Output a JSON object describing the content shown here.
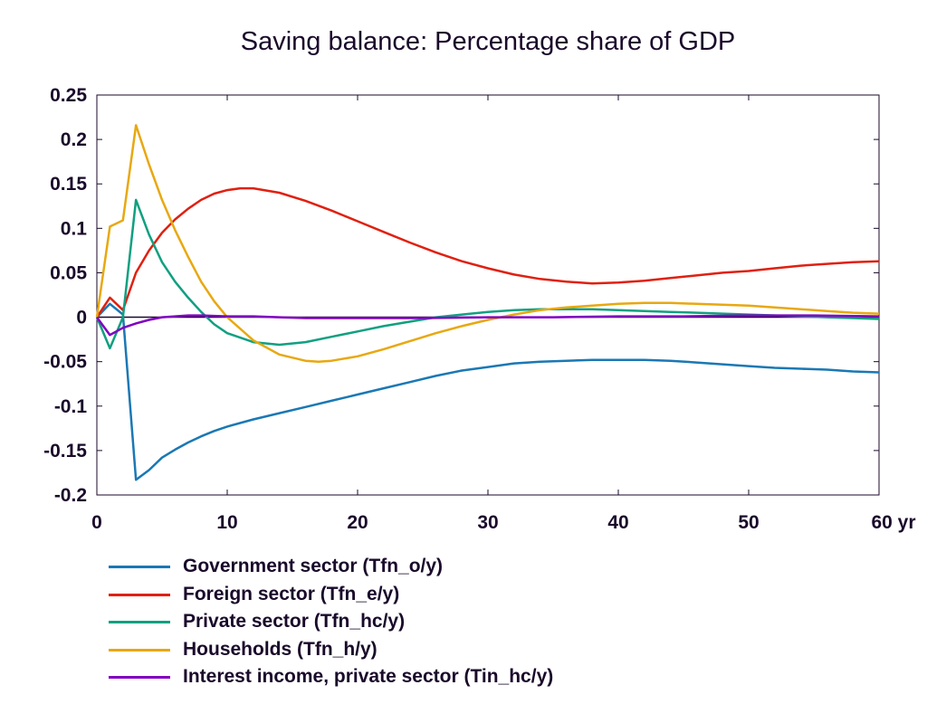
{
  "chart_data": {
    "type": "line",
    "title": "Saving balance: Percentage share of GDP",
    "xlabel": "",
    "ylabel": "",
    "x_unit_label": "yr",
    "xlim": [
      0,
      60
    ],
    "ylim": [
      -0.2,
      0.25
    ],
    "x_ticks": [
      "0",
      "10",
      "20",
      "30",
      "40",
      "50",
      "60 yr"
    ],
    "y_ticks": [
      "0.25",
      "0.2",
      "0.15",
      "0.1",
      "0.05",
      "0",
      "-0.05",
      "-0.1",
      "-0.15",
      "-0.2"
    ],
    "grid": false,
    "legend_position": "bottom",
    "series": [
      {
        "name": "Government sector (Tfn_o/y)",
        "color": "#1a78b4",
        "points": [
          [
            0,
            0
          ],
          [
            1,
            0.015
          ],
          [
            2,
            0.003
          ],
          [
            3,
            -0.183
          ],
          [
            4,
            -0.172
          ],
          [
            5,
            -0.158
          ],
          [
            6,
            -0.149
          ],
          [
            7,
            -0.141
          ],
          [
            8,
            -0.134
          ],
          [
            9,
            -0.128
          ],
          [
            10,
            -0.123
          ],
          [
            12,
            -0.115
          ],
          [
            14,
            -0.108
          ],
          [
            16,
            -0.101
          ],
          [
            18,
            -0.094
          ],
          [
            20,
            -0.087
          ],
          [
            22,
            -0.08
          ],
          [
            24,
            -0.073
          ],
          [
            26,
            -0.066
          ],
          [
            28,
            -0.06
          ],
          [
            30,
            -0.056
          ],
          [
            32,
            -0.052
          ],
          [
            34,
            -0.05
          ],
          [
            36,
            -0.049
          ],
          [
            38,
            -0.048
          ],
          [
            40,
            -0.048
          ],
          [
            42,
            -0.048
          ],
          [
            44,
            -0.049
          ],
          [
            46,
            -0.051
          ],
          [
            48,
            -0.053
          ],
          [
            50,
            -0.055
          ],
          [
            52,
            -0.057
          ],
          [
            54,
            -0.058
          ],
          [
            56,
            -0.059
          ],
          [
            58,
            -0.061
          ],
          [
            60,
            -0.062
          ]
        ]
      },
      {
        "name": "Foreign sector (Tfn_e/y)",
        "color": "#e02010",
        "points": [
          [
            0,
            0
          ],
          [
            1,
            0.022
          ],
          [
            2,
            0.008
          ],
          [
            3,
            0.05
          ],
          [
            4,
            0.075
          ],
          [
            5,
            0.095
          ],
          [
            6,
            0.11
          ],
          [
            7,
            0.122
          ],
          [
            8,
            0.132
          ],
          [
            9,
            0.139
          ],
          [
            10,
            0.143
          ],
          [
            11,
            0.145
          ],
          [
            12,
            0.145
          ],
          [
            14,
            0.14
          ],
          [
            16,
            0.131
          ],
          [
            18,
            0.12
          ],
          [
            20,
            0.108
          ],
          [
            22,
            0.096
          ],
          [
            24,
            0.084
          ],
          [
            26,
            0.073
          ],
          [
            28,
            0.063
          ],
          [
            30,
            0.055
          ],
          [
            32,
            0.048
          ],
          [
            34,
            0.043
          ],
          [
            36,
            0.04
          ],
          [
            38,
            0.038
          ],
          [
            40,
            0.039
          ],
          [
            42,
            0.041
          ],
          [
            44,
            0.044
          ],
          [
            46,
            0.047
          ],
          [
            48,
            0.05
          ],
          [
            50,
            0.052
          ],
          [
            52,
            0.055
          ],
          [
            54,
            0.058
          ],
          [
            56,
            0.06
          ],
          [
            58,
            0.062
          ],
          [
            60,
            0.063
          ]
        ]
      },
      {
        "name": "Private sector (Tfn_hc/y)",
        "color": "#10a080",
        "points": [
          [
            0,
            0
          ],
          [
            1,
            -0.035
          ],
          [
            2,
            0
          ],
          [
            3,
            0.132
          ],
          [
            4,
            0.093
          ],
          [
            5,
            0.062
          ],
          [
            6,
            0.04
          ],
          [
            7,
            0.022
          ],
          [
            8,
            0.006
          ],
          [
            9,
            -0.008
          ],
          [
            10,
            -0.018
          ],
          [
            12,
            -0.028
          ],
          [
            14,
            -0.031
          ],
          [
            16,
            -0.028
          ],
          [
            18,
            -0.022
          ],
          [
            20,
            -0.016
          ],
          [
            22,
            -0.01
          ],
          [
            24,
            -0.005
          ],
          [
            26,
            0
          ],
          [
            28,
            0.003
          ],
          [
            30,
            0.006
          ],
          [
            32,
            0.008
          ],
          [
            34,
            0.009
          ],
          [
            36,
            0.009
          ],
          [
            38,
            0.009
          ],
          [
            40,
            0.008
          ],
          [
            42,
            0.007
          ],
          [
            44,
            0.006
          ],
          [
            46,
            0.005
          ],
          [
            48,
            0.004
          ],
          [
            50,
            0.003
          ],
          [
            52,
            0.002
          ],
          [
            54,
            0.001
          ],
          [
            56,
            0
          ],
          [
            58,
            -0.001
          ],
          [
            60,
            -0.002
          ]
        ]
      },
      {
        "name": "Households (Tfn_h/y)",
        "color": "#e8a810",
        "points": [
          [
            0,
            0
          ],
          [
            1,
            0.102
          ],
          [
            2,
            0.109
          ],
          [
            3,
            0.216
          ],
          [
            4,
            0.172
          ],
          [
            5,
            0.132
          ],
          [
            6,
            0.098
          ],
          [
            7,
            0.068
          ],
          [
            8,
            0.04
          ],
          [
            9,
            0.018
          ],
          [
            10,
            0
          ],
          [
            12,
            -0.026
          ],
          [
            14,
            -0.042
          ],
          [
            16,
            -0.049
          ],
          [
            17,
            -0.05
          ],
          [
            18,
            -0.049
          ],
          [
            20,
            -0.044
          ],
          [
            22,
            -0.036
          ],
          [
            24,
            -0.027
          ],
          [
            26,
            -0.018
          ],
          [
            28,
            -0.01
          ],
          [
            30,
            -0.003
          ],
          [
            32,
            0.003
          ],
          [
            34,
            0.008
          ],
          [
            36,
            0.011
          ],
          [
            38,
            0.013
          ],
          [
            40,
            0.015
          ],
          [
            42,
            0.016
          ],
          [
            44,
            0.016
          ],
          [
            46,
            0.015
          ],
          [
            48,
            0.014
          ],
          [
            50,
            0.013
          ],
          [
            52,
            0.011
          ],
          [
            54,
            0.009
          ],
          [
            56,
            0.007
          ],
          [
            58,
            0.005
          ],
          [
            60,
            0.004
          ]
        ]
      },
      {
        "name": "Interest income, private sector (Tin_hc/y)",
        "color": "#8000c0",
        "points": [
          [
            0,
            0
          ],
          [
            1,
            -0.02
          ],
          [
            2,
            -0.012
          ],
          [
            3,
            -0.007
          ],
          [
            4,
            -0.003
          ],
          [
            5,
            0
          ],
          [
            6,
            0.001
          ],
          [
            7,
            0.002
          ],
          [
            8,
            0.002
          ],
          [
            10,
            0.001
          ],
          [
            12,
            0.001
          ],
          [
            14,
            0
          ],
          [
            16,
            -0.001
          ],
          [
            18,
            -0.001
          ],
          [
            20,
            -0.001
          ],
          [
            25,
            -0.001
          ],
          [
            30,
            0
          ],
          [
            35,
            0
          ],
          [
            40,
            0.001
          ],
          [
            45,
            0.001
          ],
          [
            50,
            0.002
          ],
          [
            55,
            0.002
          ],
          [
            60,
            0.001
          ]
        ]
      }
    ]
  }
}
